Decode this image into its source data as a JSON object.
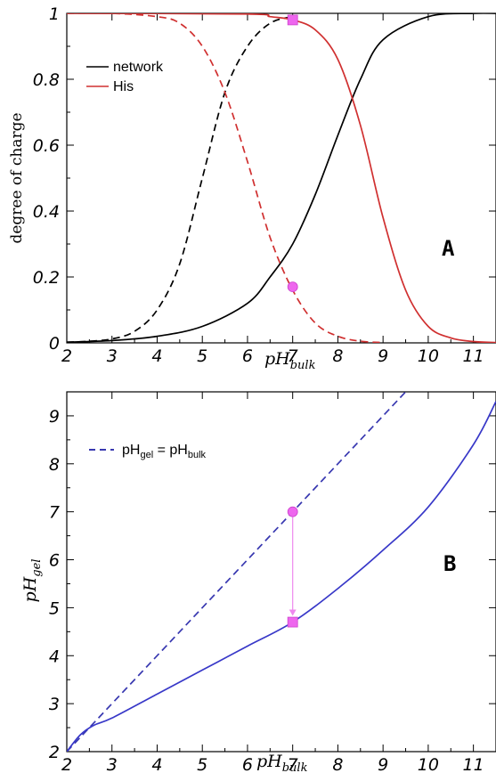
{
  "chart_data": [
    {
      "type": "line",
      "panel_label": "A",
      "xlabel": "pH",
      "xlabel_sub": "bulk",
      "ylabel": "degree of charge",
      "xlim": [
        2,
        11.5
      ],
      "ylim": [
        0,
        1
      ],
      "xticks": [
        2,
        3,
        4,
        5,
        6,
        7,
        8,
        9,
        10,
        11
      ],
      "yticks": [
        0,
        0.2,
        0.4,
        0.6,
        0.8,
        1
      ],
      "ytick_labels": [
        "0",
        "0.2",
        "0.4",
        "0.6",
        "0.8",
        "1"
      ],
      "legend_position": "top-left",
      "series": [
        {
          "name": "network",
          "color": "#000000",
          "dash": "solid",
          "x": [
            2,
            3,
            4,
            5,
            6,
            6.5,
            7,
            7.5,
            8,
            8.5,
            9,
            10,
            11,
            11.5
          ],
          "y": [
            0.002,
            0.007,
            0.02,
            0.05,
            0.12,
            0.2,
            0.3,
            0.45,
            0.63,
            0.8,
            0.92,
            0.99,
            1.0,
            1.0
          ]
        },
        {
          "name": "",
          "color": "#000000",
          "dash": "dashed",
          "x": [
            2,
            2.5,
            3,
            3.5,
            4,
            4.5,
            5,
            5.5,
            6,
            6.5,
            7
          ],
          "y": [
            0.002,
            0.005,
            0.012,
            0.035,
            0.1,
            0.24,
            0.5,
            0.76,
            0.9,
            0.97,
            0.99
          ]
        },
        {
          "name": "His",
          "color": "#d03030",
          "dash": "solid",
          "x": [
            2,
            6,
            6.5,
            7,
            7.5,
            8,
            8.5,
            9,
            9.5,
            10,
            10.5,
            11,
            11.5
          ],
          "y": [
            1.0,
            0.998,
            0.99,
            0.98,
            0.95,
            0.86,
            0.66,
            0.38,
            0.16,
            0.05,
            0.015,
            0.004,
            0.001
          ]
        },
        {
          "name": "",
          "color": "#d03030",
          "dash": "dashed",
          "x": [
            2,
            3,
            4,
            4.5,
            5,
            5.5,
            6,
            6.5,
            7,
            7.5,
            8,
            8.5,
            9
          ],
          "y": [
            1.0,
            1.0,
            0.99,
            0.97,
            0.9,
            0.76,
            0.55,
            0.32,
            0.16,
            0.06,
            0.02,
            0.005,
            0.001
          ]
        }
      ],
      "markers": [
        {
          "shape": "square",
          "x": 7,
          "y": 0.98,
          "color": "#ee66ee"
        },
        {
          "shape": "circle",
          "x": 7,
          "y": 0.17,
          "color": "#ee66ee"
        }
      ]
    },
    {
      "type": "line",
      "panel_label": "B",
      "xlabel": "pH",
      "xlabel_sub": "bulk",
      "ylabel": "pH",
      "ylabel_sub": "gel",
      "xlim": [
        2,
        11.5
      ],
      "ylim": [
        2,
        9.5
      ],
      "xticks": [
        2,
        3,
        4,
        5,
        6,
        7,
        8,
        9,
        10,
        11
      ],
      "yticks": [
        2,
        3,
        4,
        5,
        6,
        7,
        8,
        9
      ],
      "legend_position": "top-left",
      "series": [
        {
          "name": "pH",
          "name_sub1": "gel",
          "name_mid": " = pH",
          "name_sub2": "bulk",
          "color": "#3838b0",
          "dash": "dashed",
          "x": [
            2,
            9.5
          ],
          "y": [
            2,
            9.5
          ]
        },
        {
          "name": "",
          "color": "#3838c8",
          "dash": "solid",
          "x": [
            2,
            2.3,
            2.6,
            3,
            4,
            5,
            6,
            7,
            8,
            9,
            10,
            11,
            11.5
          ],
          "y": [
            2,
            2.35,
            2.55,
            2.7,
            3.2,
            3.7,
            4.2,
            4.7,
            5.4,
            6.2,
            7.1,
            8.4,
            9.3
          ]
        }
      ],
      "markers": [
        {
          "shape": "circle",
          "x": 7,
          "y": 7.0,
          "color": "#ee66ee"
        },
        {
          "shape": "square",
          "x": 7,
          "y": 4.7,
          "color": "#ee66ee"
        }
      ],
      "arrow": {
        "from": [
          7,
          7.0
        ],
        "to": [
          7,
          4.7
        ],
        "color": "#ee88ee"
      }
    }
  ]
}
